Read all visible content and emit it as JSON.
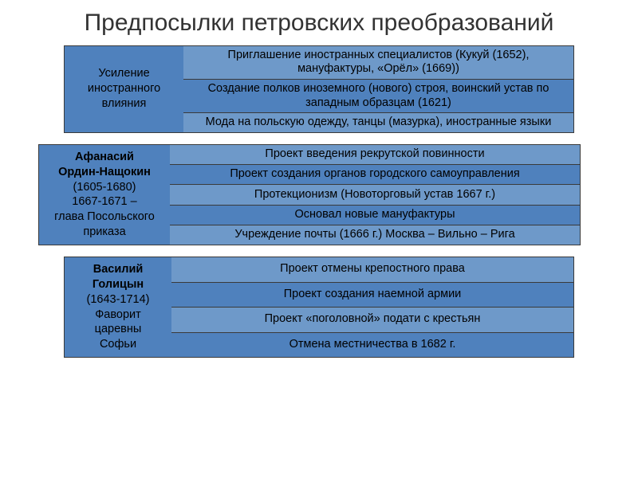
{
  "title": "Предпосылки петровских преобразований",
  "colors": {
    "light": "#6e99c9",
    "dark": "#4f81bd",
    "border": "#3a3a3a",
    "text": "#000000",
    "bg": "#ffffff"
  },
  "blocks": [
    {
      "side": {
        "lines": [
          "Усиление",
          "иностранного",
          "влияния"
        ],
        "bold_lines": []
      },
      "rows": [
        {
          "text": "Приглашение иностранных специалистов (Кукуй (1652), мануфактуры, «Орёл» (1669))",
          "shade": "light"
        },
        {
          "text": "Создание полков иноземного (нового) строя, воинский устав по западным образцам (1621)",
          "shade": "dark"
        },
        {
          "text": "Мода на польскую одежду, танцы (мазурка), иностранные языки",
          "shade": "light"
        }
      ]
    },
    {
      "side": {
        "lines": [
          "Афанасий",
          "Ордин-Нащокин",
          "(1605-1680)",
          "1667-1671 –",
          "глава Посольского",
          "приказа"
        ],
        "bold_lines": [
          0,
          1
        ]
      },
      "rows": [
        {
          "text": "Проект введения рекрутской повинности",
          "shade": "light"
        },
        {
          "text": "Проект создания органов городского самоуправления",
          "shade": "dark"
        },
        {
          "text": "Протекционизм (Новоторговый устав 1667 г.)",
          "shade": "light"
        },
        {
          "text": "Основал новые мануфактуры",
          "shade": "dark"
        },
        {
          "text": "Учреждение почты (1666 г.) Москва – Вильно – Рига",
          "shade": "light"
        }
      ]
    },
    {
      "side": {
        "lines": [
          "Василий",
          "Голицын",
          "(1643-1714)",
          "Фаворит",
          "царевны",
          "Софьи"
        ],
        "bold_lines": [
          0,
          1
        ]
      },
      "rows": [
        {
          "text": "Проект отмены крепостного права",
          "shade": "light"
        },
        {
          "text": "Проект создания наемной армии",
          "shade": "dark"
        },
        {
          "text": "Проект «поголовной» подати с крестьян",
          "shade": "light"
        },
        {
          "text": "Отмена местничества в 1682 г.",
          "shade": "dark"
        }
      ]
    }
  ]
}
